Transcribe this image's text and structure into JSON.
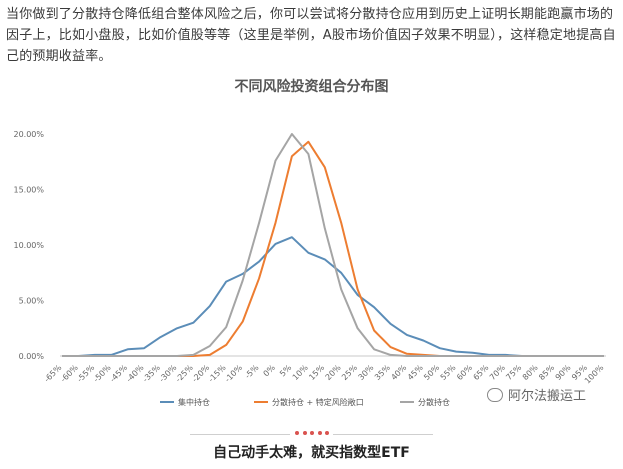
{
  "intro_text": "当你做到了分散持仓降低组合整体风险之后，你可以尝试将分散持仓应用到历史上证明长期能跑赢市场的因子上，比如小盘股，比如价值股等等（这里是举例，A股市场价值因子效果不明显），这样稳定地提高自己的预期收益率。",
  "footer_text": "自己动手太难，就买指数型ETF",
  "watermark_text": "阿尔法搬运工",
  "colors": {
    "blue": "#5b8db8",
    "orange": "#ed7d31",
    "gray": "#a5a5a5",
    "accent": "#d9534f"
  },
  "chart_data": {
    "type": "line",
    "title": "不同风险投资组合分布图",
    "xlabel": "",
    "ylabel": "",
    "categories": [
      "-65%",
      "-60%",
      "-55%",
      "-50%",
      "-45%",
      "-40%",
      "-35%",
      "-30%",
      "-25%",
      "-20%",
      "-15%",
      "-10%",
      "-5%",
      "0%",
      "5%",
      "10%",
      "15%",
      "20%",
      "25%",
      "30%",
      "35%",
      "40%",
      "45%",
      "50%",
      "55%",
      "60%",
      "65%",
      "70%",
      "75%",
      "80%",
      "85%",
      "90%",
      "95%",
      "100%"
    ],
    "y_ticks": [
      "0.00%",
      "5.00%",
      "10.00%",
      "15.00%",
      "20.00%"
    ],
    "ylim": [
      0,
      20
    ],
    "grid": false,
    "legend_position": "bottom",
    "series": [
      {
        "name": "集中持仓",
        "color": "#5b8db8",
        "values": [
          0,
          0,
          0.1,
          0.1,
          0.6,
          0.7,
          1.7,
          2.5,
          3.0,
          4.5,
          6.7,
          7.4,
          8.5,
          10.1,
          10.7,
          9.3,
          8.7,
          7.5,
          5.5,
          4.4,
          2.9,
          1.9,
          1.4,
          0.7,
          0.4,
          0.3,
          0.1,
          0.1,
          0,
          0,
          0,
          0,
          0,
          0
        ]
      },
      {
        "name": "分散持仓 + 特定风险敞口",
        "color": "#ed7d31",
        "values": [
          0,
          0,
          0,
          0,
          0,
          0,
          0,
          0,
          0,
          0.1,
          1.0,
          3.1,
          7.0,
          12.0,
          18.0,
          19.3,
          17.0,
          12.0,
          6.0,
          2.3,
          0.8,
          0.2,
          0.1,
          0,
          0,
          0,
          0,
          0,
          0,
          0,
          0,
          0,
          0,
          0
        ]
      },
      {
        "name": "分散持仓",
        "color": "#a5a5a5",
        "values": [
          0,
          0,
          0,
          0,
          0,
          0,
          0,
          0,
          0.1,
          0.9,
          2.6,
          6.8,
          12.0,
          17.6,
          20.0,
          18.2,
          11.5,
          6.0,
          2.5,
          0.6,
          0.1,
          0,
          0,
          0,
          0,
          0,
          0,
          0,
          0,
          0,
          0,
          0,
          0,
          0
        ]
      }
    ]
  }
}
